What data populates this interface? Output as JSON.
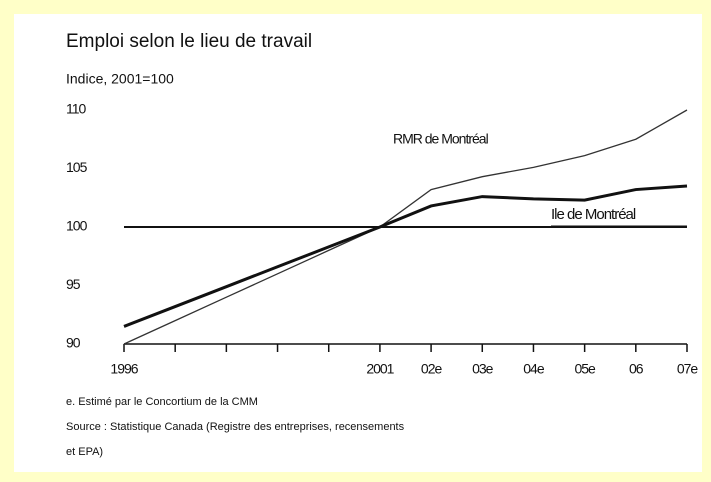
{
  "chart_data": {
    "type": "line",
    "title": "Emploi selon le lieu de travail",
    "subtitle": "Indice, 2001=100",
    "categories": [
      "1996",
      null,
      null,
      null,
      null,
      "2001",
      "02e",
      "03e",
      "04e",
      "05e",
      "06",
      "07e"
    ],
    "series": [
      {
        "name": "RMR de Montréal",
        "color": "#333333",
        "values": [
          90,
          92,
          94,
          96,
          98,
          100,
          103.2,
          104.3,
          105.1,
          106.1,
          107.5,
          110
        ]
      },
      {
        "name": "Ile de Montréal",
        "color": "#111111",
        "values": [
          91.5,
          93.2,
          94.9,
          96.6,
          98.3,
          100,
          101.8,
          102.6,
          102.4,
          102.3,
          103.2,
          103.5
        ]
      }
    ],
    "reference_line": 100,
    "ylim": [
      90,
      110
    ],
    "yticks": [
      90,
      95,
      100,
      105,
      110
    ],
    "notes": [
      "e.  Estimé par le Concortium de la CMM",
      "Source : Statistique Canada (Registre des entreprises, recensements",
      "et EPA)"
    ]
  }
}
